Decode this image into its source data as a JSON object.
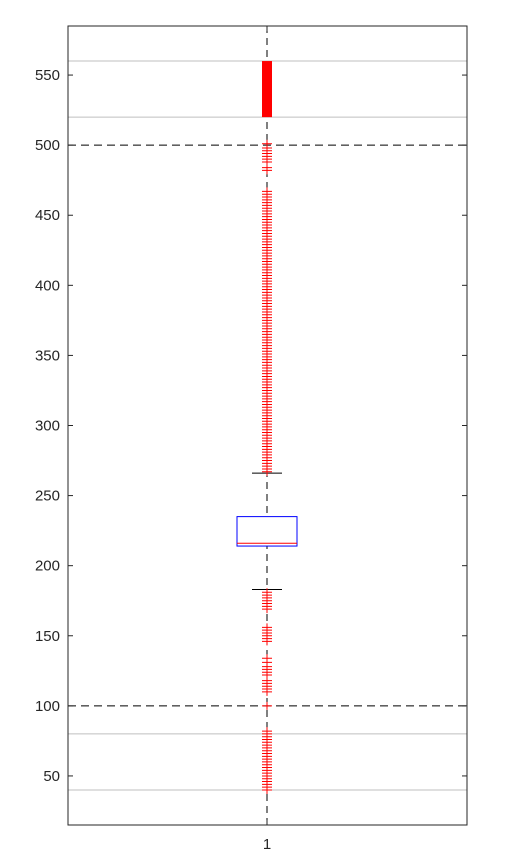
{
  "chart_data": {
    "type": "boxplot",
    "title": "",
    "xlabel": "",
    "ylabel": "",
    "categories": [
      "1"
    ],
    "ylim": [
      15,
      585
    ],
    "yticks": [
      50,
      100,
      150,
      200,
      250,
      300,
      350,
      400,
      450,
      500,
      550
    ],
    "ytick_labels": [
      "50",
      "100",
      "150",
      "200",
      "250",
      "300",
      "350",
      "400",
      "450",
      "500",
      "550"
    ],
    "xtick_labels": [
      "1"
    ],
    "box": {
      "q1": 214,
      "median": 216,
      "q3": 235,
      "whisker_low": 183,
      "whisker_high": 266
    },
    "reference_lines": {
      "dashed": [
        100,
        500
      ],
      "solid_gray": [
        40,
        80,
        520,
        560
      ]
    },
    "outliers_high_range": [
      267,
      560
    ],
    "outliers": [
      40,
      42,
      44,
      46,
      48,
      50,
      52,
      54,
      56,
      58,
      60,
      62,
      64,
      66,
      68,
      70,
      72,
      74,
      76,
      78,
      80,
      82,
      100,
      110,
      112,
      114,
      116,
      118,
      122,
      124,
      126,
      128,
      131,
      134,
      146,
      148,
      150,
      152,
      154,
      156,
      169,
      171,
      173,
      175,
      177,
      179,
      181,
      482,
      484,
      488,
      490,
      492,
      494,
      496,
      498,
      501
    ],
    "colors": {
      "box": "#0000ff",
      "median": "#ff0000",
      "outlier": "#ff0000",
      "whisker": "#000000",
      "dashed_line": "#000000",
      "gray_line": "#bfbfbf",
      "axis": "#262626"
    },
    "grid": false
  }
}
